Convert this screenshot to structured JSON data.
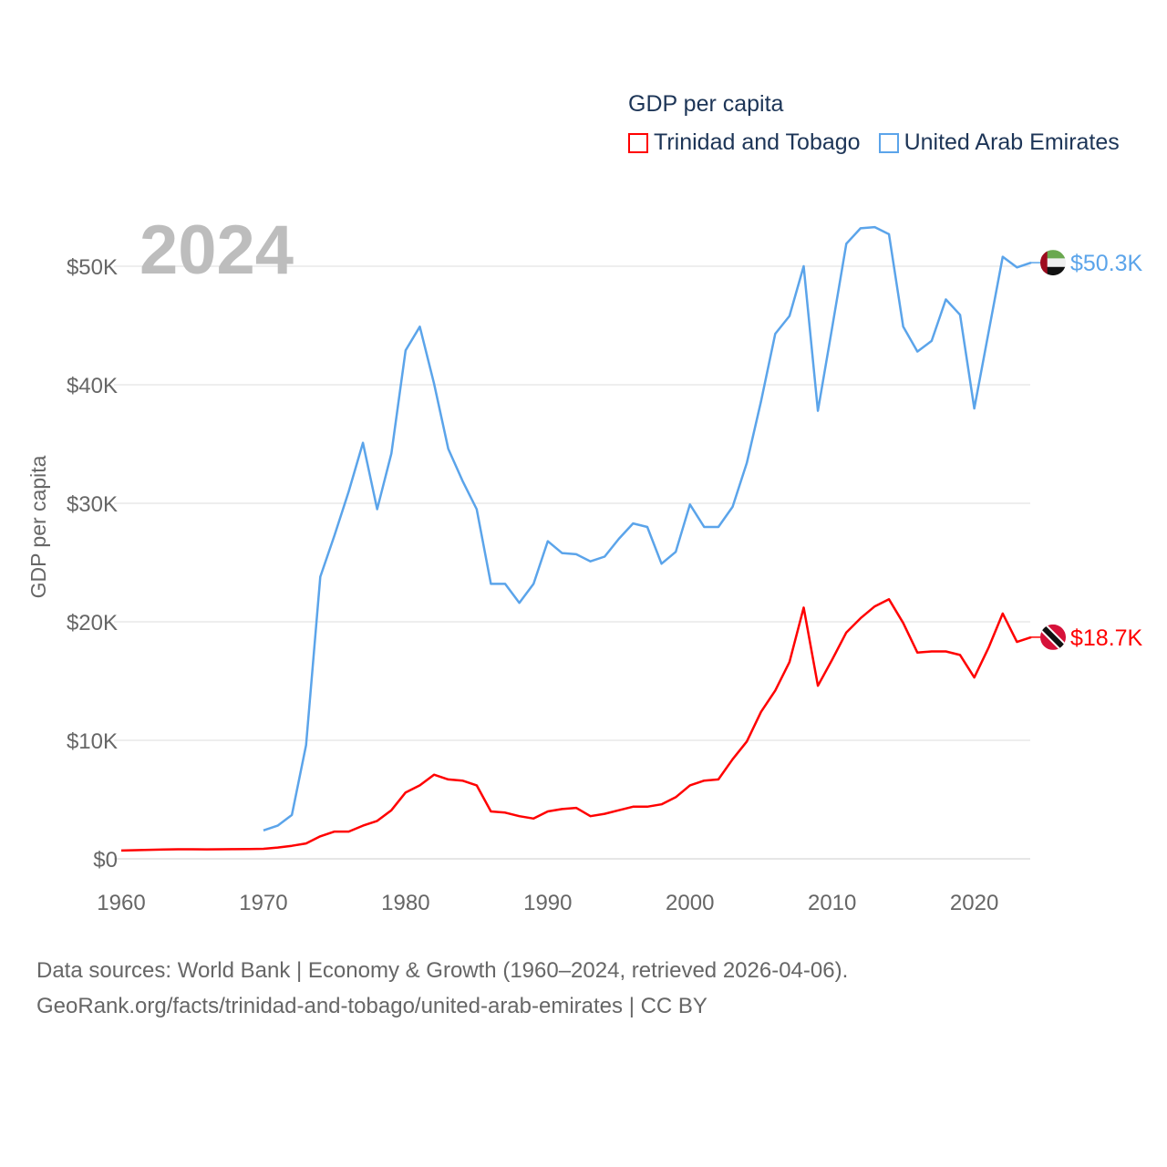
{
  "chart_data": {
    "type": "line",
    "title": "GDP per capita",
    "year_label": "2024",
    "ylabel": "GDP per capita",
    "xlabel": "",
    "xlim": [
      1960,
      2024
    ],
    "ylim": [
      0,
      55000
    ],
    "x_ticks": [
      "1960",
      "1970",
      "1980",
      "1990",
      "2000",
      "2010",
      "2020"
    ],
    "x_tick_values": [
      1960,
      1970,
      1980,
      1990,
      2000,
      2010,
      2020
    ],
    "y_ticks": [
      "$0",
      "$10K",
      "$20K",
      "$30K",
      "$40K",
      "$50K"
    ],
    "y_tick_values": [
      0,
      10000,
      20000,
      30000,
      40000,
      50000
    ],
    "grid": true,
    "legend_position": "top-right",
    "series": [
      {
        "name": "Trinidad and Tobago",
        "color": "#ff0000",
        "end_label": "$18.7K",
        "start_year": 1960,
        "values": [
          700,
          730,
          760,
          790,
          810,
          810,
          800,
          810,
          820,
          830,
          850,
          950,
          1100,
          1300,
          1900,
          2300,
          2300,
          2800,
          3200,
          4100,
          5600,
          6200,
          7100,
          6700,
          6600,
          6200,
          4000,
          3900,
          3600,
          3400,
          4000,
          4200,
          4300,
          3600,
          3800,
          4100,
          4400,
          4400,
          4600,
          5200,
          6200,
          6600,
          6700,
          8400,
          9900,
          12400,
          14200,
          16600,
          21200,
          14600,
          16800,
          19100,
          20300,
          21300,
          21900,
          19900,
          17400,
          17500,
          17500,
          17200,
          15300,
          17800,
          20700,
          18300,
          18700
        ]
      },
      {
        "name": "United Arab Emirates",
        "color": "#5ba4ea",
        "end_label": "$50.3K",
        "start_year": 1970,
        "values": [
          2400,
          2800,
          3700,
          9600,
          23800,
          27300,
          31000,
          35100,
          29500,
          34200,
          42900,
          44900,
          40100,
          34600,
          31900,
          29500,
          23200,
          23200,
          21600,
          23200,
          26800,
          25800,
          25700,
          25100,
          25500,
          27000,
          28300,
          28000,
          24900,
          25900,
          29900,
          28000,
          28000,
          29700,
          33400,
          38600,
          44300,
          45800,
          50000,
          37800,
          44800,
          51900,
          53200,
          53300,
          52700,
          44900,
          42800,
          43700,
          47200,
          45900,
          38000,
          44400,
          50800,
          49900,
          50300
        ]
      }
    ]
  },
  "footer": {
    "line1": "Data sources: World Bank | Economy & Growth (1960–2024, retrieved 2026-04-06).",
    "line2": "GeoRank.org/facts/trinidad-and-tobago/united-arab-emirates | CC BY"
  }
}
